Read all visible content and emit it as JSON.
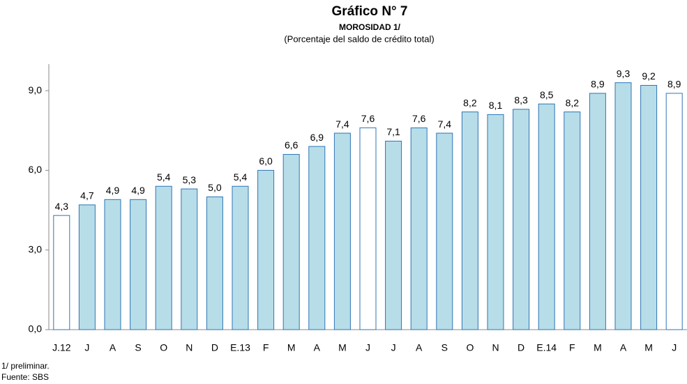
{
  "chart_data": {
    "type": "bar",
    "title": "Gráfico N° 7",
    "subtitle": "MOROSIDAD 1/",
    "y_label": "(Porcentaje del saldo de crédito total)",
    "categories": [
      "J.12",
      "J",
      "A",
      "S",
      "O",
      "N",
      "D",
      "E.13",
      "F",
      "M",
      "A",
      "M",
      "J",
      "J",
      "A",
      "S",
      "O",
      "N",
      "D",
      "E.14",
      "F",
      "M",
      "A",
      "M",
      "J"
    ],
    "values": [
      4.3,
      4.7,
      4.9,
      4.9,
      5.4,
      5.3,
      5.0,
      5.4,
      6.0,
      6.6,
      6.9,
      7.4,
      7.6,
      7.1,
      7.6,
      7.4,
      8.2,
      8.1,
      8.3,
      8.5,
      8.2,
      8.9,
      9.3,
      9.2,
      8.9
    ],
    "value_labels": [
      "4,3",
      "4,7",
      "4,9",
      "4,9",
      "5,4",
      "5,3",
      "5,0",
      "5,4",
      "6,0",
      "6,6",
      "6,9",
      "7,4",
      "7,6",
      "7,1",
      "7,6",
      "7,4",
      "8,2",
      "8,1",
      "8,3",
      "8,5",
      "8,2",
      "8,9",
      "9,3",
      "9,2",
      "8,9"
    ],
    "colors": [
      "#ffffff",
      "#b7dde8",
      "#b7dde8",
      "#b7dde8",
      "#b7dde8",
      "#b7dde8",
      "#b7dde8",
      "#b7dde8",
      "#b7dde8",
      "#b7dde8",
      "#b7dde8",
      "#b7dde8",
      "#ffffff",
      "#b7dde8",
      "#b7dde8",
      "#b7dde8",
      "#b7dde8",
      "#b7dde8",
      "#b7dde8",
      "#b7dde8",
      "#b7dde8",
      "#b7dde8",
      "#b7dde8",
      "#b7dde8",
      "#ffffff"
    ],
    "edge_color": "#2e75b6",
    "ylim": [
      0,
      10
    ],
    "yticks": [
      {
        "value": 0,
        "label": "0,0"
      },
      {
        "value": 3,
        "label": "3,0"
      },
      {
        "value": 6,
        "label": "6,0"
      },
      {
        "value": 9,
        "label": "9,0"
      }
    ],
    "grid": false,
    "footnote": "1/ preliminar.",
    "source": "Fuente: SBS"
  }
}
